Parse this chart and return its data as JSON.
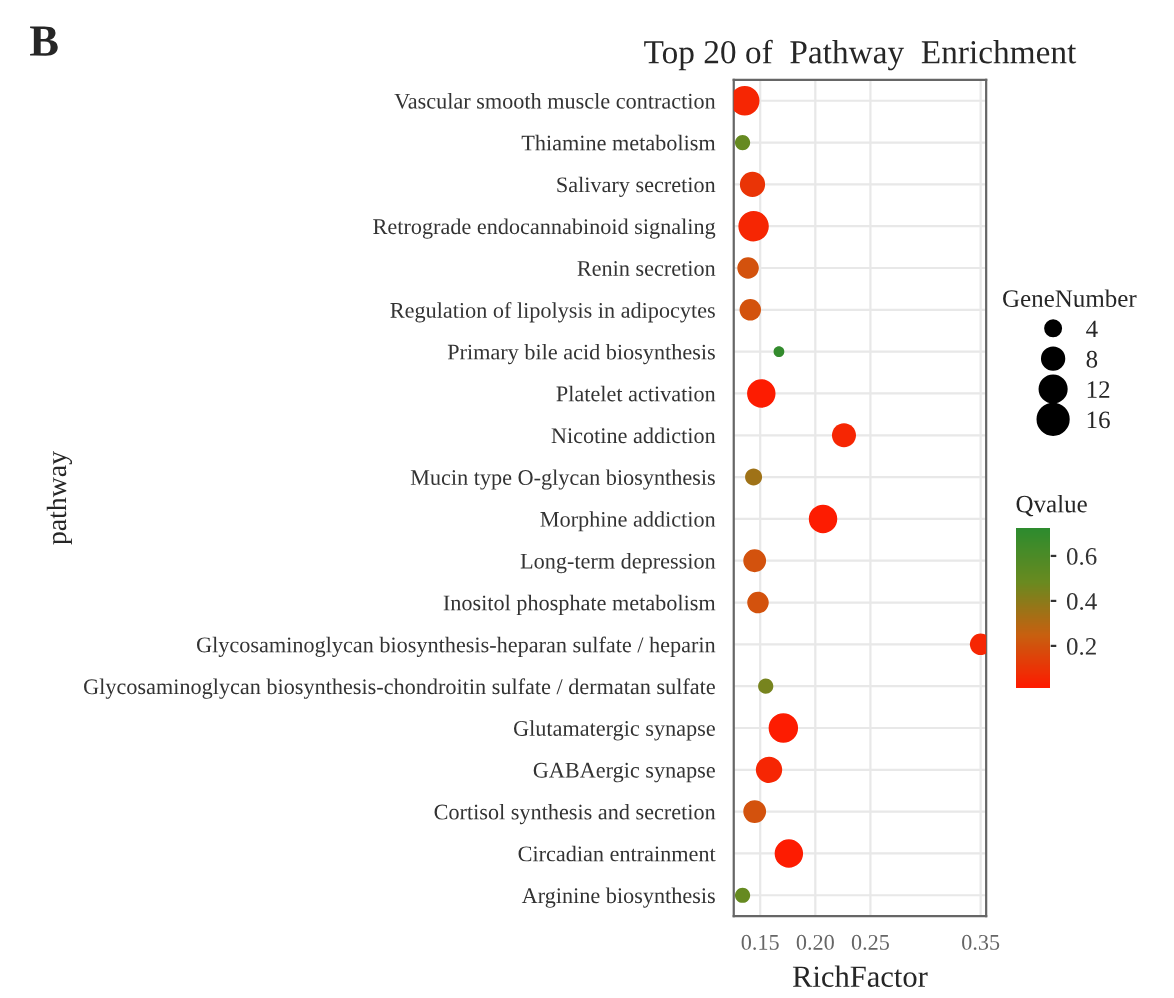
{
  "chart_data": {
    "type": "bubble",
    "title": "Top 20 of  Pathway  Enrichment",
    "xlabel": "RichFactor",
    "ylabel": "pathway",
    "legend_title": "GeneNumber",
    "clabel": "Qvalue",
    "annotations": [
      "B"
    ],
    "categories": [
      "Vascular smooth muscle contraction",
      "Thiamine metabolism",
      "Salivary secretion",
      "Retrograde endocannabinoid signaling",
      "Renin secretion",
      "Regulation of lipolysis in adipocytes",
      "Primary bile acid biosynthesis",
      "Platelet activation",
      "Nicotine addiction",
      "Mucin type O-glycan biosynthesis",
      "Morphine addiction",
      "Long-term depression",
      "Inositol phosphate metabolism",
      "Glycosaminoglycan biosynthesis-heparan sulfate / heparin",
      "Glycosaminoglycan biosynthesis-chondroitin sulfate / dermatan sulfate",
      "Glutamatergic synapse",
      "GABAergic synapse",
      "Cortisol synthesis and secretion",
      "Circadian entrainment",
      "Arginine biosynthesis"
    ],
    "values": [
      0.136,
      0.134,
      0.143,
      0.144,
      0.139,
      0.141,
      0.167,
      0.151,
      0.226,
      0.144,
      0.207,
      0.145,
      0.148,
      0.35,
      0.155,
      0.171,
      0.158,
      0.145,
      0.176,
      0.134
    ],
    "sizes": [
      15,
      4,
      11,
      16,
      8,
      8,
      2,
      14,
      10,
      5,
      14,
      9,
      8,
      8,
      4,
      15,
      12,
      9,
      14,
      4
    ],
    "cvalues": [
      0.05,
      0.5,
      0.1,
      0.05,
      0.2,
      0.2,
      0.7,
      0.02,
      0.05,
      0.35,
      0.02,
      0.2,
      0.2,
      0.05,
      0.45,
      0.02,
      0.05,
      0.2,
      0.02,
      0.5
    ],
    "size_legend": [
      4,
      8,
      12,
      16
    ],
    "orientation": "horizontal",
    "xlim": [
      0.126,
      0.355
    ],
    "xticks": [
      {
        "value": 0.15,
        "label": "0.15"
      },
      {
        "value": 0.2,
        "label": "0.20"
      },
      {
        "value": 0.25,
        "label": "0.25"
      },
      {
        "value": 0.35,
        "label": "0.35"
      }
    ],
    "clim": [
      0.01,
      0.72
    ],
    "cticks": [
      0.2,
      0.4,
      0.6
    ],
    "grid": true
  }
}
